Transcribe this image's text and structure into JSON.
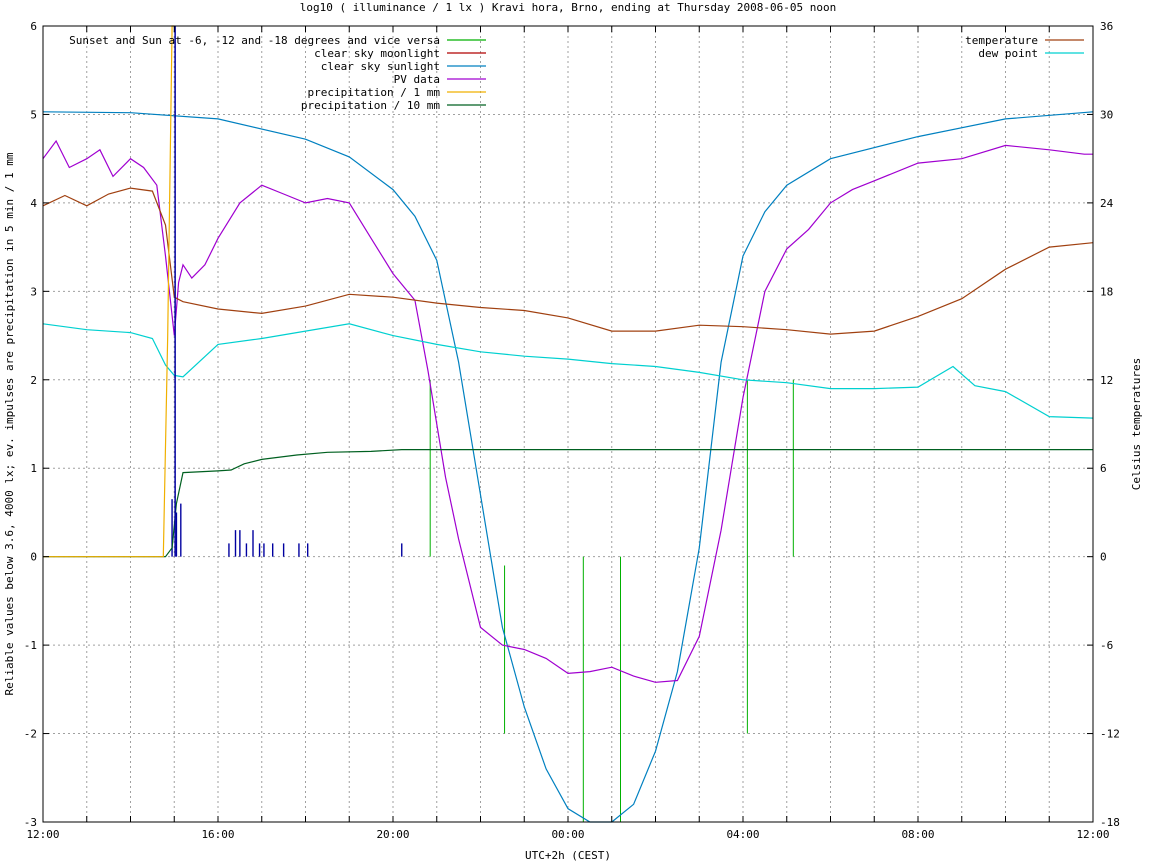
{
  "chart_data": {
    "type": "line",
    "title": "log10 ( illuminance / 1 lx ) Kravi hora, Brno, ending at Thursday 2008-06-05 noon",
    "xlabel": "UTC+2h (CEST)",
    "ylabel": "Reliable values below 3.6, 4000 lx; ev. impulses are precipitation in 5 min / 1 mm",
    "y2label": "Celsius temperatures",
    "xlim": [
      0,
      24
    ],
    "ylim": [
      -3,
      6
    ],
    "y2lim": [
      -18,
      36
    ],
    "grid": true,
    "x_ticks": [
      {
        "v": 0,
        "label": "12:00"
      },
      {
        "v": 4,
        "label": "16:00"
      },
      {
        "v": 8,
        "label": "20:00"
      },
      {
        "v": 12,
        "label": "00:00"
      },
      {
        "v": 16,
        "label": "04:00"
      },
      {
        "v": 20,
        "label": "08:00"
      },
      {
        "v": 24,
        "label": "12:00"
      }
    ],
    "y_ticks": [
      "-3",
      "-2",
      "-1",
      "0",
      "1",
      "2",
      "3",
      "4",
      "5",
      "6"
    ],
    "y2_ticks": [
      "-18",
      "-12",
      "-6",
      "0",
      "6",
      "12",
      "18",
      "24",
      "30",
      "36"
    ],
    "legend_left": [
      {
        "name": "Sunset and Sun at -6, -12 and -18 degrees and vice versa",
        "color": "#00b000"
      },
      {
        "name": "clear sky moonlight",
        "color": "#b00000"
      },
      {
        "name": "clear sky sunlight",
        "color": "#0080c0"
      },
      {
        "name": "PV data",
        "color": "#a000d0"
      },
      {
        "name": "precipitation / 1 mm",
        "color": "#f0b000"
      },
      {
        "name": "precipitation / 10 mm",
        "color": "#006020"
      }
    ],
    "legend_right": [
      {
        "name": "temperature",
        "color": "#a04010"
      },
      {
        "name": "dew point",
        "color": "#00d0d0"
      }
    ],
    "series": [
      {
        "key": "sunlight",
        "color": "#0080c0",
        "axis": "y",
        "x": [
          0,
          2,
          4,
          6,
          7,
          8,
          8.5,
          9,
          9.5,
          10,
          10.5,
          11,
          11.5,
          12,
          12.5,
          13,
          13.5,
          14,
          14.5,
          15,
          15.5,
          16,
          16.5,
          17,
          18,
          20,
          22,
          24
        ],
        "y": [
          5.03,
          5.02,
          4.95,
          4.72,
          4.52,
          4.15,
          3.85,
          3.35,
          2.2,
          0.7,
          -0.8,
          -1.7,
          -2.4,
          -2.85,
          -3.05,
          -3.05,
          -2.8,
          -2.2,
          -1.3,
          0.1,
          2.2,
          3.4,
          3.9,
          4.2,
          4.5,
          4.75,
          4.95,
          5.03
        ]
      },
      {
        "key": "pv",
        "color": "#a000d0",
        "axis": "y",
        "x": [
          0,
          0.3,
          0.6,
          1,
          1.3,
          1.6,
          2,
          2.3,
          2.6,
          2.8,
          3.0,
          3.1,
          3.2,
          3.4,
          3.7,
          4,
          4.5,
          5,
          5.5,
          6,
          6.5,
          7,
          7.5,
          8,
          8.5,
          8.8,
          9.2,
          9.5,
          10,
          10.5,
          11,
          11.5,
          12,
          12.5,
          13,
          13.5,
          14,
          14.5,
          15,
          15.5,
          16,
          16.5,
          17,
          17.5,
          18,
          18.5,
          19,
          20,
          21,
          22,
          23,
          23.8,
          24
        ],
        "y": [
          4.5,
          4.7,
          4.4,
          4.5,
          4.6,
          4.3,
          4.5,
          4.4,
          4.2,
          3.4,
          2.5,
          3.1,
          3.3,
          3.15,
          3.3,
          3.6,
          4.0,
          4.2,
          4.1,
          4.0,
          4.05,
          4.0,
          3.6,
          3.2,
          2.9,
          2.1,
          0.9,
          0.2,
          -0.8,
          -1.0,
          -1.05,
          -1.15,
          -1.32,
          -1.3,
          -1.25,
          -1.35,
          -1.42,
          -1.4,
          -0.9,
          0.3,
          1.8,
          3.0,
          3.48,
          3.7,
          4.0,
          4.15,
          4.25,
          4.45,
          4.5,
          4.65,
          4.6,
          4.55,
          4.55
        ]
      },
      {
        "key": "temperature",
        "color": "#a04010",
        "axis": "y2",
        "x": [
          0,
          0.5,
          1,
          1.5,
          2,
          2.5,
          2.8,
          3,
          3.2,
          4,
          5,
          6,
          7,
          8,
          9,
          10,
          11,
          12,
          13,
          14,
          15,
          16,
          17,
          18,
          19,
          20,
          21,
          22,
          23,
          24
        ],
        "y": [
          23.8,
          24.5,
          23.8,
          24.6,
          25.0,
          24.8,
          22.5,
          17.6,
          17.3,
          16.8,
          16.5,
          17.0,
          17.8,
          17.6,
          17.2,
          16.9,
          16.7,
          16.2,
          15.3,
          15.3,
          15.7,
          15.6,
          15.4,
          15.1,
          15.3,
          16.3,
          17.5,
          19.5,
          21.0,
          21.3
        ]
      },
      {
        "key": "dewpoint",
        "color": "#00d0d0",
        "axis": "y2",
        "x": [
          0,
          1,
          2,
          2.5,
          2.8,
          3,
          3.2,
          4,
          5,
          6,
          7,
          8,
          9,
          10,
          11,
          12,
          13,
          14,
          15,
          16,
          17,
          18,
          19,
          20,
          20.8,
          21.3,
          22,
          23,
          24
        ],
        "y": [
          15.8,
          15.4,
          15.2,
          14.8,
          13.0,
          12.3,
          12.2,
          14.4,
          14.8,
          15.3,
          15.8,
          15.0,
          14.4,
          13.9,
          13.6,
          13.4,
          13.1,
          12.9,
          12.5,
          12.0,
          11.8,
          11.4,
          11.4,
          11.5,
          12.9,
          11.6,
          11.2,
          9.5,
          9.4
        ]
      },
      {
        "key": "precip10",
        "color": "#006020",
        "axis": "y",
        "x": [
          0,
          2.8,
          2.95,
          3.05,
          3.2,
          4,
          4.3,
          4.6,
          5,
          5.8,
          6.5,
          7.5,
          8.2,
          9,
          12,
          16,
          20,
          24
        ],
        "y": [
          0,
          0,
          0.1,
          0.6,
          0.95,
          0.97,
          0.98,
          1.05,
          1.1,
          1.15,
          1.18,
          1.19,
          1.21,
          1.21,
          1.21,
          1.21,
          1.21,
          1.21
        ]
      },
      {
        "key": "precip1",
        "color": "#f0b000",
        "axis": "y",
        "x": [
          0,
          2.75,
          2.85,
          2.95,
          3.0
        ],
        "y": [
          0,
          0,
          2.5,
          6.0,
          6.0
        ]
      }
    ],
    "sun_lines": {
      "color": "#00b000",
      "x": [
        8.85,
        10.55,
        12.35,
        13.2,
        16.1,
        17.15
      ],
      "y_top": [
        2.0,
        -0.1,
        0,
        0,
        2.0,
        2.0
      ],
      "y_bottom": [
        0,
        -2.0,
        -3,
        -3,
        -2.0,
        0
      ]
    },
    "impulses": {
      "color": "#0000a0",
      "x": [
        2.95,
        3.05,
        3.15,
        4.25,
        4.4,
        4.5,
        4.65,
        4.8,
        4.95,
        5.05,
        5.25,
        5.5,
        5.85,
        6.05,
        8.2
      ],
      "y": [
        0.65,
        0.5,
        0.6,
        0.15,
        0.3,
        0.3,
        0.15,
        0.3,
        0.15,
        0.15,
        0.15,
        0.15,
        0.15,
        0.15,
        0.15
      ]
    }
  }
}
